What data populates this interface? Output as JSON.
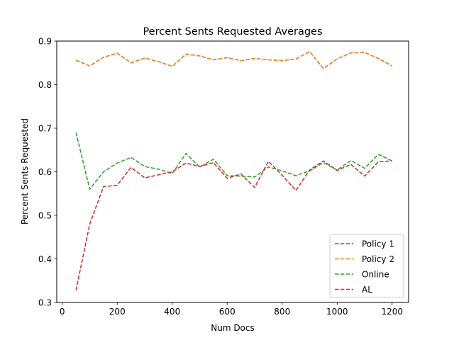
{
  "chart_data": {
    "type": "line",
    "title": "Percent Sents Requested Averages",
    "xlabel": "Num Docs",
    "ylabel": "Percent Sents Requested",
    "xlim": [
      -20,
      1260
    ],
    "ylim": [
      0.3,
      0.9
    ],
    "xticks": [
      0,
      200,
      400,
      600,
      800,
      1000,
      1200
    ],
    "yticks": [
      0.3,
      0.4,
      0.5,
      0.6,
      0.7,
      0.8,
      0.9
    ],
    "xtick_labels": [
      "0",
      "200",
      "400",
      "600",
      "800",
      "1000",
      "1200"
    ],
    "ytick_labels": [
      "0.3",
      "0.4",
      "0.5",
      "0.6",
      "0.7",
      "0.8",
      "0.9"
    ],
    "legend_position": "lower-right",
    "grid": false,
    "x": [
      50,
      100,
      150,
      200,
      250,
      300,
      350,
      400,
      450,
      500,
      550,
      600,
      650,
      700,
      750,
      800,
      850,
      900,
      950,
      1000,
      1050,
      1100,
      1150,
      1200
    ],
    "series": [
      {
        "name": "Policy 1",
        "color": "#1f77b4",
        "values": [
          0.856,
          0.843,
          0.863,
          0.872,
          0.85,
          0.861,
          0.853,
          0.842,
          0.87,
          0.866,
          0.857,
          0.862,
          0.855,
          0.86,
          0.857,
          0.855,
          0.859,
          0.876,
          0.837,
          0.859,
          0.873,
          0.874,
          0.86,
          0.843
        ]
      },
      {
        "name": "Policy 2",
        "color": "#ff7f0e",
        "values": [
          0.856,
          0.843,
          0.863,
          0.872,
          0.85,
          0.861,
          0.853,
          0.842,
          0.87,
          0.866,
          0.857,
          0.862,
          0.855,
          0.86,
          0.857,
          0.855,
          0.859,
          0.876,
          0.837,
          0.859,
          0.873,
          0.874,
          0.86,
          0.843
        ]
      },
      {
        "name": "Online",
        "color": "#2ca02c",
        "values": [
          0.69,
          0.56,
          0.6,
          0.62,
          0.633,
          0.612,
          0.606,
          0.596,
          0.642,
          0.611,
          0.629,
          0.591,
          0.59,
          0.588,
          0.611,
          0.602,
          0.591,
          0.602,
          0.621,
          0.604,
          0.626,
          0.608,
          0.64,
          0.625
        ]
      },
      {
        "name": "AL",
        "color": "#d62728",
        "values": [
          0.328,
          0.48,
          0.566,
          0.569,
          0.61,
          0.586,
          0.593,
          0.6,
          0.62,
          0.612,
          0.621,
          0.585,
          0.595,
          0.564,
          0.624,
          0.592,
          0.557,
          0.604,
          0.625,
          0.603,
          0.617,
          0.59,
          0.623,
          0.625
        ]
      }
    ]
  }
}
